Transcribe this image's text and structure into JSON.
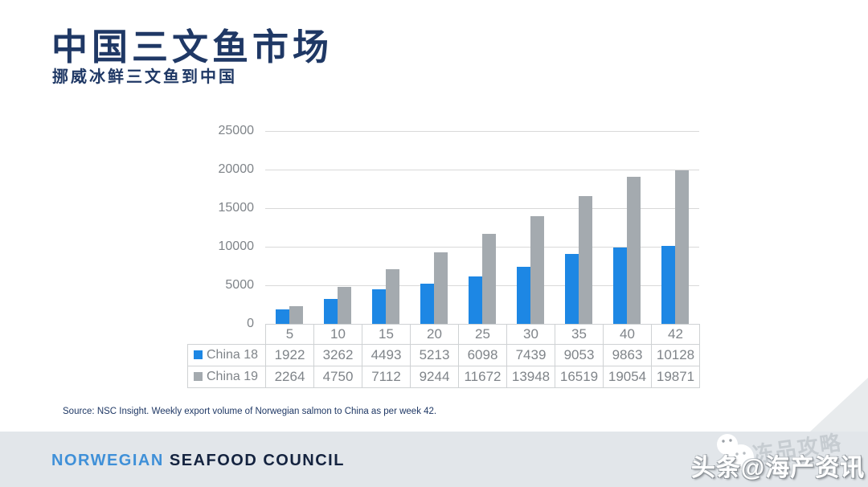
{
  "header": {
    "title": "中国三文鱼市场",
    "subtitle": "挪威冰鲜三文鱼到中国"
  },
  "chart_data": {
    "type": "bar",
    "title": "",
    "categories": [
      "5",
      "10",
      "15",
      "20",
      "25",
      "30",
      "35",
      "40",
      "42"
    ],
    "series": [
      {
        "name": "China 18",
        "color": "#1d87e4",
        "values": [
          1922,
          3262,
          4493,
          5213,
          6098,
          7439,
          9053,
          9863,
          10128
        ]
      },
      {
        "name": "China 19",
        "color": "#a4aaaf",
        "values": [
          2264,
          4750,
          7112,
          9244,
          11672,
          13948,
          16519,
          19054,
          19871
        ]
      }
    ],
    "ylim": [
      0,
      25000
    ],
    "yticks": [
      0,
      5000,
      10000,
      15000,
      20000,
      25000
    ],
    "grid": true,
    "legend_position": "table-left",
    "xlabel": "",
    "ylabel": ""
  },
  "source_note": "Source: NSC Insight. Weekly export volume of Norwegian salmon to China as per week 42.",
  "footer": {
    "brand_primary": "NORWEGIAN",
    "brand_secondary": "SEAFOOD COUNCIL"
  },
  "watermark": {
    "text": "头条@海产资讯",
    "faded_text": "冻品攻略"
  },
  "colors": {
    "title_navy": "#1f3865",
    "bar_blue": "#1d87e4",
    "bar_gray": "#a4aaaf",
    "grid": "#d9d9d9",
    "axis_text": "#7f8489",
    "table_border": "#cfd2d4",
    "footer_band": "#e2e6ea",
    "brand_blue": "#3f90d8",
    "brand_navy": "#14233f"
  }
}
